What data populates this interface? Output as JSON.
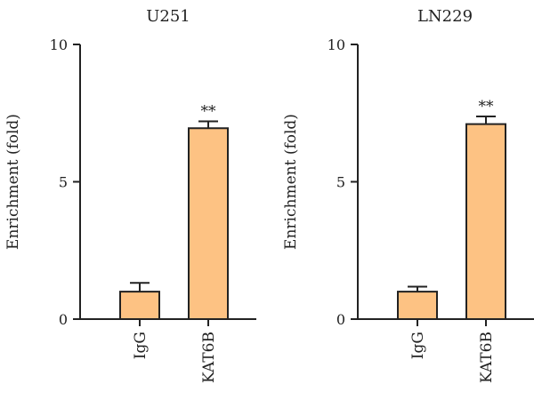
{
  "chart_data": [
    {
      "type": "bar",
      "title": "U251",
      "ylabel": "Enrichment (fold)",
      "xlabel": "",
      "categories": [
        "IgG",
        "KAT6B"
      ],
      "values": [
        1.0,
        6.95
      ],
      "errors": [
        0.32,
        0.25
      ],
      "significance": [
        "",
        "**"
      ],
      "ylim": [
        0,
        10
      ],
      "yticks": [
        0,
        5,
        10
      ],
      "grid": false,
      "bar_color": "#FDC283"
    },
    {
      "type": "bar",
      "title": "LN229",
      "ylabel": "Enrichment (fold)",
      "xlabel": "",
      "categories": [
        "IgG",
        "KAT6B"
      ],
      "values": [
        1.0,
        7.1
      ],
      "errors": [
        0.18,
        0.28
      ],
      "significance": [
        "",
        "**"
      ],
      "ylim": [
        0,
        10
      ],
      "yticks": [
        0,
        5,
        10
      ],
      "grid": false,
      "bar_color": "#FDC283"
    }
  ]
}
